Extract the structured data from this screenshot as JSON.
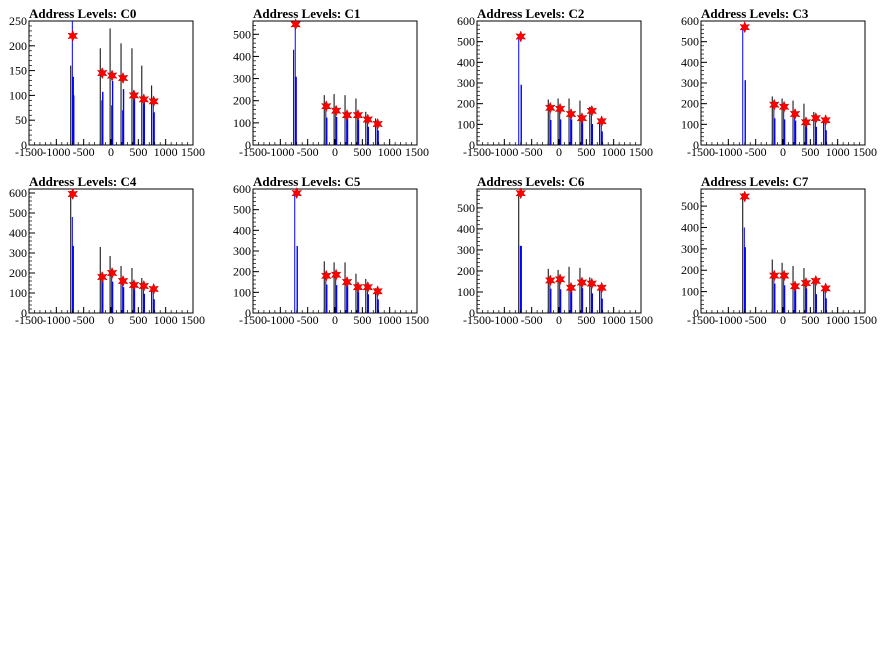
{
  "chart_data": [
    {
      "type": "bar",
      "title": "Address Levels: C0",
      "xlim": [
        -1500,
        1500
      ],
      "ylim": [
        0,
        250
      ],
      "xticks": [
        -1500,
        -1000,
        -500,
        0,
        500,
        1000,
        1500
      ],
      "yticks": [
        0,
        50,
        100,
        150,
        200,
        250
      ],
      "grid": false,
      "histogram_peaks": [
        {
          "x": -700,
          "counts": [
            160,
            250,
            100
          ]
        },
        {
          "x": -160,
          "counts": [
            195,
            90
          ]
        },
        {
          "x": 20,
          "counts": [
            235,
            80
          ]
        },
        {
          "x": 220,
          "counts": [
            205,
            70
          ]
        },
        {
          "x": 420,
          "counts": [
            195,
            110
          ]
        },
        {
          "x": 600,
          "counts": [
            160,
            95
          ]
        },
        {
          "x": 780,
          "counts": [
            120,
            90
          ]
        }
      ],
      "markers": {
        "x": [
          -700,
          -160,
          20,
          220,
          420,
          600,
          780
        ],
        "y": [
          220,
          145,
          140,
          135,
          100,
          92,
          88
        ]
      }
    },
    {
      "type": "bar",
      "title": "Address Levels: C1",
      "xlim": [
        -1500,
        1500
      ],
      "ylim": [
        0,
        560
      ],
      "xticks": [
        -1500,
        -1000,
        -500,
        0,
        500,
        1000,
        1500
      ],
      "yticks": [
        0,
        100,
        200,
        300,
        400,
        500
      ],
      "grid": false,
      "histogram_peaks": [
        {
          "x": -720,
          "counts": [
            430,
            560
          ]
        },
        {
          "x": -160,
          "counts": [
            225,
            170
          ]
        },
        {
          "x": 20,
          "counts": [
            230,
            160
          ]
        },
        {
          "x": 220,
          "counts": [
            225,
            140
          ]
        },
        {
          "x": 420,
          "counts": [
            210,
            140
          ]
        },
        {
          "x": 600,
          "counts": [
            150,
            120
          ]
        },
        {
          "x": 780,
          "counts": [
            120,
            100
          ]
        }
      ],
      "markers": {
        "x": [
          -720,
          -160,
          20,
          220,
          420,
          600,
          780
        ],
        "y": [
          545,
          175,
          155,
          135,
          135,
          115,
          95
        ]
      }
    },
    {
      "type": "bar",
      "title": "Address Levels: C2",
      "xlim": [
        -1500,
        1500
      ],
      "ylim": [
        0,
        600
      ],
      "xticks": [
        -1500,
        -1000,
        -500,
        0,
        500,
        1000,
        1500
      ],
      "yticks": [
        0,
        100,
        200,
        300,
        400,
        500,
        600
      ],
      "grid": false,
      "histogram_peaks": [
        {
          "x": -700,
          "counts": [
            530
          ]
        },
        {
          "x": -160,
          "counts": [
            220,
            180
          ]
        },
        {
          "x": 20,
          "counts": [
            225,
            175
          ]
        },
        {
          "x": 220,
          "counts": [
            225,
            150
          ]
        },
        {
          "x": 420,
          "counts": [
            215,
            130
          ]
        },
        {
          "x": 600,
          "counts": [
            185,
            165
          ]
        },
        {
          "x": 780,
          "counts": [
            120,
            120
          ]
        }
      ],
      "markers": {
        "x": [
          -700,
          -160,
          20,
          220,
          420,
          600,
          780
        ],
        "y": [
          525,
          180,
          175,
          150,
          130,
          165,
          115
        ]
      }
    },
    {
      "type": "bar",
      "title": "Address Levels: C3",
      "xlim": [
        -1500,
        1500
      ],
      "ylim": [
        0,
        600
      ],
      "xticks": [
        -1500,
        -1000,
        -500,
        0,
        500,
        1000,
        1500
      ],
      "yticks": [
        0,
        100,
        200,
        300,
        400,
        500,
        600
      ],
      "grid": false,
      "histogram_peaks": [
        {
          "x": -700,
          "counts": [
            570
          ]
        },
        {
          "x": -160,
          "counts": [
            235,
            190
          ]
        },
        {
          "x": 20,
          "counts": [
            225,
            180
          ]
        },
        {
          "x": 220,
          "counts": [
            215,
            150
          ]
        },
        {
          "x": 420,
          "counts": [
            200,
            110
          ]
        },
        {
          "x": 600,
          "counts": [
            160,
            130
          ]
        },
        {
          "x": 780,
          "counts": [
            130,
            120
          ]
        }
      ],
      "markers": {
        "x": [
          -700,
          -160,
          20,
          220,
          420,
          600,
          780
        ],
        "y": [
          570,
          195,
          185,
          150,
          110,
          130,
          120
        ]
      }
    },
    {
      "type": "bar",
      "title": "Address Levels: C4",
      "xlim": [
        -1500,
        1500
      ],
      "ylim": [
        0,
        620
      ],
      "xticks": [
        -1500,
        -1000,
        -500,
        0,
        500,
        1000,
        1500
      ],
      "yticks": [
        0,
        100,
        200,
        300,
        400,
        500,
        600
      ],
      "grid": false,
      "histogram_peaks": [
        {
          "x": -700,
          "counts": [
            610,
            480
          ]
        },
        {
          "x": -160,
          "counts": [
            330,
            180
          ]
        },
        {
          "x": 20,
          "counts": [
            285,
            200
          ]
        },
        {
          "x": 220,
          "counts": [
            235,
            160
          ]
        },
        {
          "x": 420,
          "counts": [
            225,
            140
          ]
        },
        {
          "x": 600,
          "counts": [
            175,
            140
          ]
        },
        {
          "x": 780,
          "counts": [
            125,
            120
          ]
        }
      ],
      "markers": {
        "x": [
          -700,
          -160,
          20,
          220,
          420,
          600,
          780
        ],
        "y": [
          595,
          180,
          200,
          160,
          140,
          135,
          120
        ]
      }
    },
    {
      "type": "bar",
      "title": "Address Levels: C5",
      "xlim": [
        -1500,
        1500
      ],
      "ylim": [
        0,
        600
      ],
      "xticks": [
        -1500,
        -1000,
        -500,
        0,
        500,
        1000,
        1500
      ],
      "yticks": [
        0,
        100,
        200,
        300,
        400,
        500,
        600
      ],
      "grid": false,
      "histogram_peaks": [
        {
          "x": -700,
          "counts": [
            590
          ]
        },
        {
          "x": -160,
          "counts": [
            250,
            180
          ]
        },
        {
          "x": 20,
          "counts": [
            245,
            190
          ]
        },
        {
          "x": 220,
          "counts": [
            245,
            150
          ]
        },
        {
          "x": 420,
          "counts": [
            190,
            130
          ]
        },
        {
          "x": 600,
          "counts": [
            165,
            125
          ]
        },
        {
          "x": 780,
          "counts": [
            120,
            110
          ]
        }
      ],
      "markers": {
        "x": [
          -700,
          -160,
          20,
          220,
          420,
          600,
          780
        ],
        "y": [
          580,
          180,
          185,
          150,
          125,
          125,
          105
        ]
      }
    },
    {
      "type": "bar",
      "title": "Address Levels: C6",
      "xlim": [
        -1500,
        1500
      ],
      "ylim": [
        0,
        590
      ],
      "xticks": [
        -1500,
        -1000,
        -500,
        0,
        500,
        1000,
        1500
      ],
      "yticks": [
        0,
        100,
        200,
        300,
        400,
        500
      ],
      "grid": false,
      "histogram_peaks": [
        {
          "x": -700,
          "counts": [
            580,
            320
          ]
        },
        {
          "x": -160,
          "counts": [
            210,
            150
          ]
        },
        {
          "x": 20,
          "counts": [
            205,
            160
          ]
        },
        {
          "x": 220,
          "counts": [
            220,
            125
          ]
        },
        {
          "x": 420,
          "counts": [
            215,
            145
          ]
        },
        {
          "x": 600,
          "counts": [
            170,
            140
          ]
        },
        {
          "x": 780,
          "counts": [
            125,
            120
          ]
        }
      ],
      "markers": {
        "x": [
          -700,
          -160,
          20,
          220,
          420,
          600,
          780
        ],
        "y": [
          570,
          155,
          160,
          120,
          145,
          140,
          120
        ]
      }
    },
    {
      "type": "bar",
      "title": "Address Levels: C7",
      "xlim": [
        -1500,
        1500
      ],
      "ylim": [
        0,
        580
      ],
      "xticks": [
        -1500,
        -1000,
        -500,
        0,
        500,
        1000,
        1500
      ],
      "yticks": [
        0,
        100,
        200,
        300,
        400,
        500
      ],
      "grid": false,
      "histogram_peaks": [
        {
          "x": -700,
          "counts": [
            560,
            400
          ]
        },
        {
          "x": -160,
          "counts": [
            250,
            175
          ]
        },
        {
          "x": 20,
          "counts": [
            235,
            180
          ]
        },
        {
          "x": 220,
          "counts": [
            220,
            125
          ]
        },
        {
          "x": 420,
          "counts": [
            210,
            140
          ]
        },
        {
          "x": 600,
          "counts": [
            160,
            150
          ]
        },
        {
          "x": 780,
          "counts": [
            125,
            115
          ]
        }
      ],
      "markers": {
        "x": [
          -700,
          -160,
          20,
          220,
          420,
          600,
          780
        ],
        "y": [
          545,
          175,
          175,
          125,
          140,
          150,
          115
        ]
      }
    }
  ],
  "colors": {
    "histogram": "#0000ff",
    "histogram_dark": "#000000",
    "marker": "#ff0000",
    "axis": "#000000"
  }
}
